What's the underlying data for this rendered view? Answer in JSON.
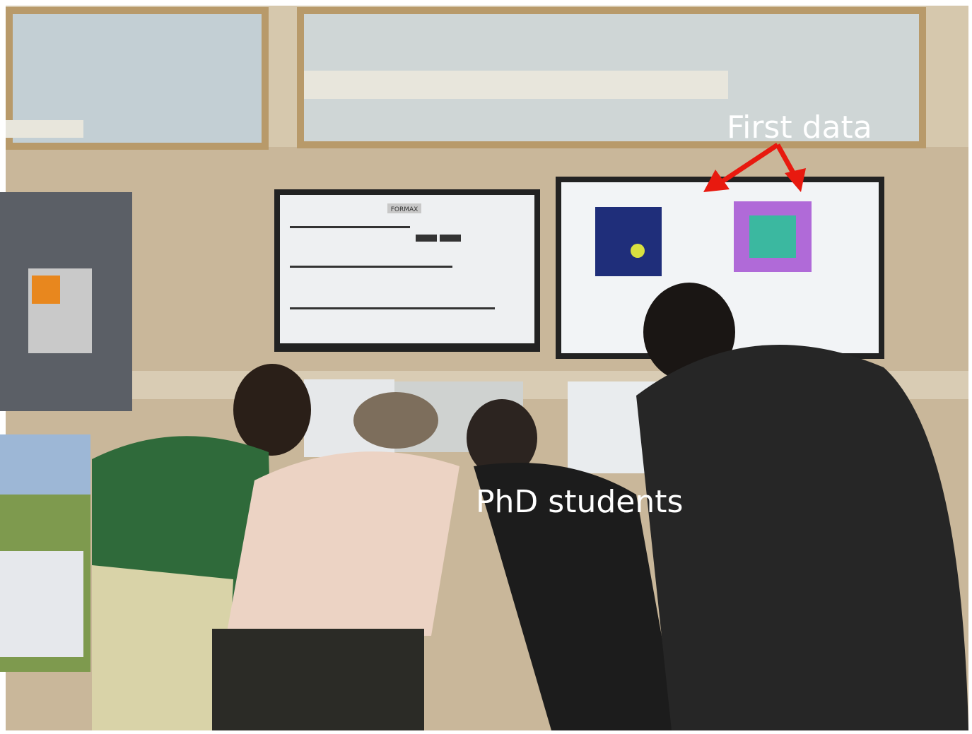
{
  "annotations": {
    "top_right": "First data",
    "center": "PhD students"
  },
  "screen": {
    "label": "FORMAX"
  }
}
